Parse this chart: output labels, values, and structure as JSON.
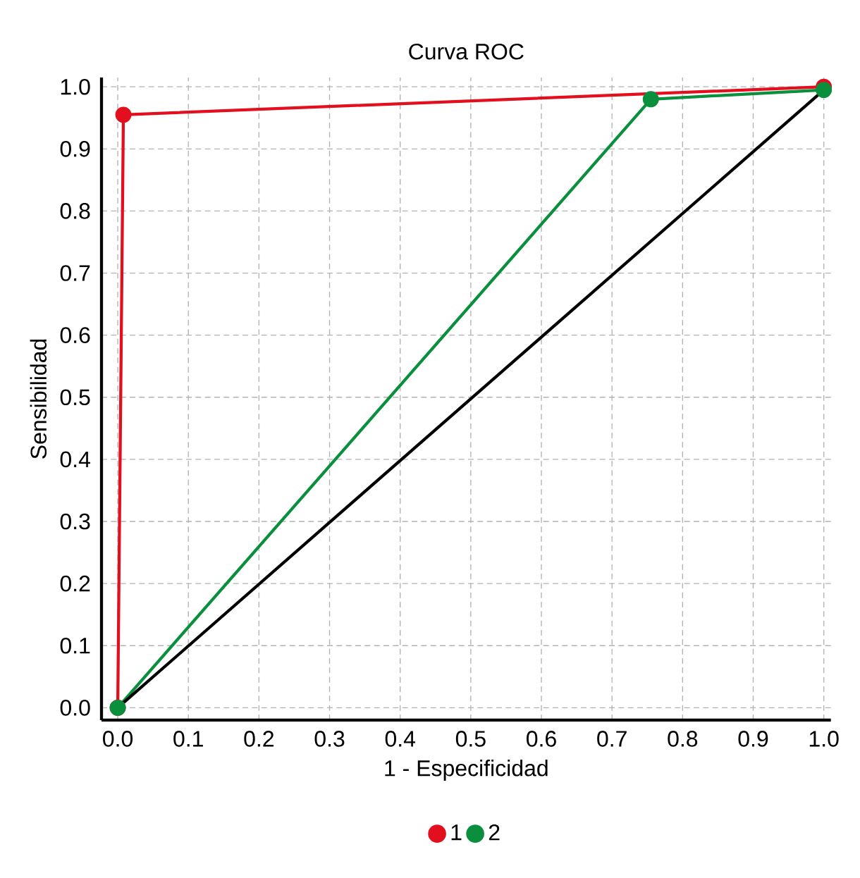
{
  "chart_data": {
    "type": "line",
    "title": "Curva ROC",
    "xlabel": "1 - Especificidad",
    "ylabel": "Sensibilidad",
    "xlim": [
      -0.023,
      1.01
    ],
    "ylim": [
      -0.02,
      1.015
    ],
    "xticks": [
      {
        "value": 0,
        "label": "0.0"
      },
      0.1,
      0.2,
      0.3,
      0.4,
      0.5,
      0.6,
      0.7,
      0.8,
      0.9,
      {
        "value": 1,
        "label": "1.0"
      }
    ],
    "yticks": [
      {
        "value": 0,
        "label": "0.0"
      },
      0.1,
      0.2,
      0.3,
      0.4,
      0.5,
      0.6,
      0.7,
      0.8,
      0.9,
      {
        "value": 1,
        "label": "1.0"
      }
    ],
    "grid": true,
    "legend": "bottom",
    "line_style": "solid",
    "series": [
      {
        "name": "1",
        "color": "#e2101f",
        "marker": "circle",
        "x": [
          0,
          0.008,
          1
        ],
        "values": [
          0,
          0.955,
          1
        ]
      },
      {
        "name": "2",
        "color": "#0a8f3c",
        "marker": "circle",
        "x": [
          0,
          0.755,
          1
        ],
        "values": [
          0,
          0.98,
          0.995
        ]
      },
      {
        "color": "#000000",
        "marker": "none",
        "x": [
          0,
          1
        ],
        "values": [
          0,
          0.995
        ]
      }
    ]
  }
}
